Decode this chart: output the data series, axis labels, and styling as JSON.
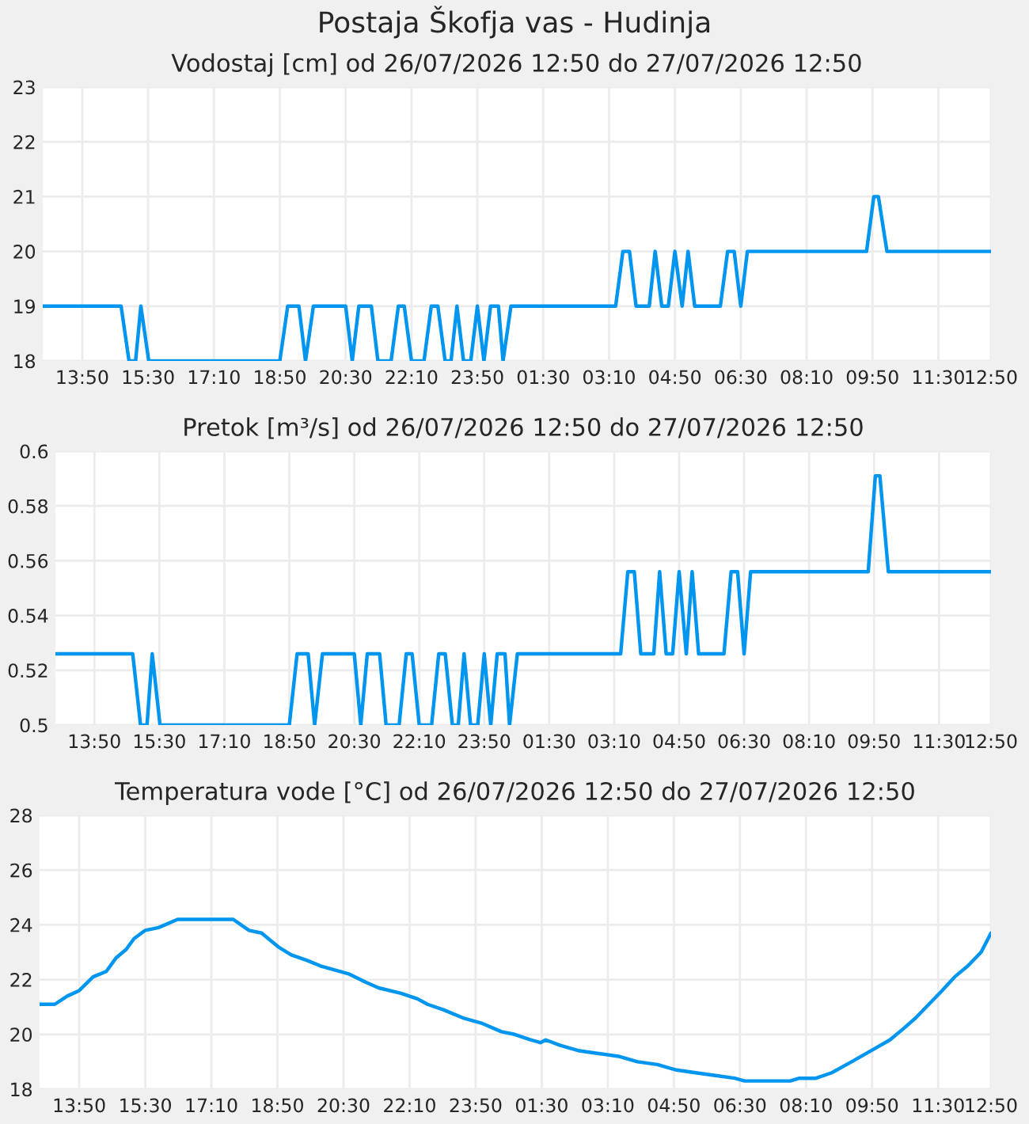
{
  "chart_data": [
    {
      "type": "line",
      "title": "Postaja Škofja vas - Hudinja",
      "subtitle": "Vodostaj [cm] od 26/07/2026 12:50 do 27/07/2026 12:50",
      "x": [
        "2026-07-26T12:50",
        "2026-07-26T14:49",
        "2026-07-26T15:01",
        "2026-07-26T15:11",
        "2026-07-26T15:19",
        "2026-07-26T15:31",
        "2026-07-26T18:50",
        "2026-07-26T19:02",
        "2026-07-26T19:19",
        "2026-07-26T19:29",
        "2026-07-26T19:41",
        "2026-07-26T20:30",
        "2026-07-26T20:40",
        "2026-07-26T20:50",
        "2026-07-26T21:09",
        "2026-07-26T21:19",
        "2026-07-26T21:39",
        "2026-07-26T21:50",
        "2026-07-26T21:59",
        "2026-07-26T22:10",
        "2026-07-26T22:29",
        "2026-07-26T22:40",
        "2026-07-26T22:50",
        "2026-07-26T23:01",
        "2026-07-26T23:10",
        "2026-07-26T23:19",
        "2026-07-26T23:29",
        "2026-07-26T23:40",
        "2026-07-26T23:50",
        "2026-07-27T00:00",
        "2026-07-27T00:10",
        "2026-07-27T00:22",
        "2026-07-27T00:29",
        "2026-07-27T00:41",
        "2026-07-27T03:20",
        "2026-07-27T03:31",
        "2026-07-27T03:41",
        "2026-07-27T03:51",
        "2026-07-27T04:11",
        "2026-07-27T04:20",
        "2026-07-27T04:30",
        "2026-07-27T04:40",
        "2026-07-27T04:50",
        "2026-07-27T05:01",
        "2026-07-27T05:10",
        "2026-07-27T05:20",
        "2026-07-27T05:59",
        "2026-07-27T06:10",
        "2026-07-27T06:20",
        "2026-07-27T06:30",
        "2026-07-27T06:40",
        "2026-07-27T09:41",
        "2026-07-27T09:52",
        "2026-07-27T09:59",
        "2026-07-27T10:12",
        "2026-07-27T12:50"
      ],
      "series": [
        {
          "color": "#0096f0",
          "values": [
            19,
            19,
            18,
            18,
            19,
            18,
            18,
            19,
            19,
            18,
            19,
            19,
            18,
            19,
            19,
            18,
            18,
            19,
            19,
            18,
            18,
            19,
            19,
            18,
            18,
            19,
            18,
            18,
            19,
            18,
            19,
            19,
            18,
            19,
            19,
            20,
            20,
            19,
            19,
            20,
            19,
            19,
            20,
            19,
            20,
            19,
            19,
            20,
            20,
            19,
            20,
            20,
            21,
            21,
            20,
            20
          ]
        }
      ],
      "xlim": [
        "2026-07-26T12:50",
        "2026-07-27T12:50"
      ],
      "xticks": [
        {
          "value": "2026-07-26T13:50",
          "label": "13:50"
        },
        {
          "value": "2026-07-26T15:30",
          "label": "15:30"
        },
        {
          "value": "2026-07-26T17:10",
          "label": "17:10"
        },
        {
          "value": "2026-07-26T18:50",
          "label": "18:50"
        },
        {
          "value": "2026-07-26T20:30",
          "label": "20:30"
        },
        {
          "value": "2026-07-26T22:10",
          "label": "22:10"
        },
        {
          "value": "2026-07-26T23:50",
          "label": "23:50"
        },
        {
          "value": "2026-07-27T01:30",
          "label": "01:30"
        },
        {
          "value": "2026-07-27T03:10",
          "label": "03:10"
        },
        {
          "value": "2026-07-27T04:50",
          "label": "04:50"
        },
        {
          "value": "2026-07-27T06:30",
          "label": "06:30"
        },
        {
          "value": "2026-07-27T08:10",
          "label": "08:10"
        },
        {
          "value": "2026-07-27T09:50",
          "label": "09:50"
        },
        {
          "value": "2026-07-27T11:30",
          "label": "11:30"
        },
        {
          "value": "2026-07-27T12:50",
          "label": "12:50"
        }
      ],
      "ylim": [
        18,
        23
      ],
      "yticks": [
        18,
        19,
        20,
        21,
        22,
        23
      ],
      "grid": true
    },
    {
      "type": "line",
      "title": "Pretok [m³/s] od 26/07/2026 12:50 do 27/07/2026 12:50",
      "x": [
        "2026-07-26T12:50",
        "2026-07-26T14:49",
        "2026-07-26T15:01",
        "2026-07-26T15:11",
        "2026-07-26T15:19",
        "2026-07-26T15:31",
        "2026-07-26T18:50",
        "2026-07-26T19:02",
        "2026-07-26T19:19",
        "2026-07-26T19:29",
        "2026-07-26T19:41",
        "2026-07-26T20:30",
        "2026-07-26T20:40",
        "2026-07-26T20:50",
        "2026-07-26T21:09",
        "2026-07-26T21:19",
        "2026-07-26T21:39",
        "2026-07-26T21:50",
        "2026-07-26T21:59",
        "2026-07-26T22:10",
        "2026-07-26T22:29",
        "2026-07-26T22:40",
        "2026-07-26T22:50",
        "2026-07-26T23:01",
        "2026-07-26T23:10",
        "2026-07-26T23:19",
        "2026-07-26T23:29",
        "2026-07-26T23:40",
        "2026-07-26T23:50",
        "2026-07-27T00:00",
        "2026-07-27T00:10",
        "2026-07-27T00:22",
        "2026-07-27T00:29",
        "2026-07-27T00:41",
        "2026-07-27T03:20",
        "2026-07-27T03:31",
        "2026-07-27T03:41",
        "2026-07-27T03:51",
        "2026-07-27T04:11",
        "2026-07-27T04:20",
        "2026-07-27T04:30",
        "2026-07-27T04:40",
        "2026-07-27T04:50",
        "2026-07-27T05:01",
        "2026-07-27T05:10",
        "2026-07-27T05:20",
        "2026-07-27T05:59",
        "2026-07-27T06:10",
        "2026-07-27T06:20",
        "2026-07-27T06:30",
        "2026-07-27T06:40",
        "2026-07-27T09:41",
        "2026-07-27T09:52",
        "2026-07-27T09:59",
        "2026-07-27T10:12",
        "2026-07-27T12:50"
      ],
      "series": [
        {
          "color": "#0096f0",
          "values": [
            0.526,
            0.526,
            0.5,
            0.5,
            0.526,
            0.5,
            0.5,
            0.526,
            0.526,
            0.5,
            0.526,
            0.526,
            0.5,
            0.526,
            0.526,
            0.5,
            0.5,
            0.526,
            0.526,
            0.5,
            0.5,
            0.526,
            0.526,
            0.5,
            0.5,
            0.526,
            0.5,
            0.5,
            0.526,
            0.5,
            0.526,
            0.526,
            0.5,
            0.526,
            0.526,
            0.556,
            0.556,
            0.526,
            0.526,
            0.556,
            0.526,
            0.526,
            0.556,
            0.526,
            0.556,
            0.526,
            0.526,
            0.556,
            0.556,
            0.526,
            0.556,
            0.556,
            0.591,
            0.591,
            0.556,
            0.556
          ]
        }
      ],
      "xlim": [
        "2026-07-26T12:50",
        "2026-07-27T12:50"
      ],
      "xticks": [
        {
          "value": "2026-07-26T13:50",
          "label": "13:50"
        },
        {
          "value": "2026-07-26T15:30",
          "label": "15:30"
        },
        {
          "value": "2026-07-26T17:10",
          "label": "17:10"
        },
        {
          "value": "2026-07-26T18:50",
          "label": "18:50"
        },
        {
          "value": "2026-07-26T20:30",
          "label": "20:30"
        },
        {
          "value": "2026-07-26T22:10",
          "label": "22:10"
        },
        {
          "value": "2026-07-26T23:50",
          "label": "23:50"
        },
        {
          "value": "2026-07-27T01:30",
          "label": "01:30"
        },
        {
          "value": "2026-07-27T03:10",
          "label": "03:10"
        },
        {
          "value": "2026-07-27T04:50",
          "label": "04:50"
        },
        {
          "value": "2026-07-27T06:30",
          "label": "06:30"
        },
        {
          "value": "2026-07-27T08:10",
          "label": "08:10"
        },
        {
          "value": "2026-07-27T09:50",
          "label": "09:50"
        },
        {
          "value": "2026-07-27T11:30",
          "label": "11:30"
        },
        {
          "value": "2026-07-27T12:50",
          "label": "12:50"
        }
      ],
      "ylim": [
        0.5,
        0.6
      ],
      "yticks": [
        0.5,
        0.52,
        0.54,
        0.56,
        0.58,
        0.6
      ],
      "grid": true
    },
    {
      "type": "line",
      "title": "Temperatura vode [°C] od 26/07/2026 12:50 do 27/07/2026 12:50",
      "x": [
        "2026-07-26T12:50",
        "2026-07-26T13:13",
        "2026-07-26T13:32",
        "2026-07-26T13:50",
        "2026-07-26T14:11",
        "2026-07-26T14:31",
        "2026-07-26T14:46",
        "2026-07-26T15:01",
        "2026-07-26T15:13",
        "2026-07-26T15:30",
        "2026-07-26T15:50",
        "2026-07-26T16:19",
        "2026-07-26T17:43",
        "2026-07-26T18:07",
        "2026-07-26T18:26",
        "2026-07-26T18:51",
        "2026-07-26T19:11",
        "2026-07-26T19:35",
        "2026-07-26T19:55",
        "2026-07-26T20:24",
        "2026-07-26T20:39",
        "2026-07-26T21:04",
        "2026-07-26T21:23",
        "2026-07-26T21:57",
        "2026-07-26T22:22",
        "2026-07-26T22:37",
        "2026-07-26T23:01",
        "2026-07-26T23:31",
        "2026-07-27T00:00",
        "2026-07-27T00:29",
        "2026-07-27T00:49",
        "2026-07-27T01:13",
        "2026-07-27T01:28",
        "2026-07-27T01:36",
        "2026-07-27T01:58",
        "2026-07-27T02:27",
        "2026-07-27T02:56",
        "2026-07-27T03:26",
        "2026-07-27T03:55",
        "2026-07-27T04:25",
        "2026-07-27T04:54",
        "2026-07-27T05:23",
        "2026-07-27T05:53",
        "2026-07-27T06:22",
        "2026-07-27T06:37",
        "2026-07-27T07:46",
        "2026-07-27T08:00",
        "2026-07-27T08:25",
        "2026-07-27T08:49",
        "2026-07-27T09:19",
        "2026-07-27T09:48",
        "2026-07-27T10:17",
        "2026-07-27T10:37",
        "2026-07-27T10:56",
        "2026-07-27T11:16",
        "2026-07-27T11:36",
        "2026-07-27T11:55",
        "2026-07-27T12:15",
        "2026-07-27T12:35",
        "2026-07-27T12:50"
      ],
      "series": [
        {
          "color": "#0096f0",
          "values": [
            21.1,
            21.1,
            21.4,
            21.6,
            22.1,
            22.3,
            22.8,
            23.1,
            23.5,
            23.8,
            23.9,
            24.2,
            24.2,
            23.8,
            23.7,
            23.2,
            22.9,
            22.7,
            22.5,
            22.3,
            22.2,
            21.9,
            21.7,
            21.5,
            21.3,
            21.1,
            20.9,
            20.6,
            20.4,
            20.1,
            20.0,
            19.8,
            19.7,
            19.8,
            19.6,
            19.4,
            19.3,
            19.2,
            19.0,
            18.9,
            18.7,
            18.6,
            18.5,
            18.4,
            18.3,
            18.3,
            18.4,
            18.4,
            18.6,
            19.0,
            19.4,
            19.8,
            20.2,
            20.6,
            21.1,
            21.6,
            22.1,
            22.5,
            23.0,
            23.7
          ]
        }
      ],
      "xlim": [
        "2026-07-26T12:50",
        "2026-07-27T12:50"
      ],
      "xticks": [
        {
          "value": "2026-07-26T13:50",
          "label": "13:50"
        },
        {
          "value": "2026-07-26T15:30",
          "label": "15:30"
        },
        {
          "value": "2026-07-26T17:10",
          "label": "17:10"
        },
        {
          "value": "2026-07-26T18:50",
          "label": "18:50"
        },
        {
          "value": "2026-07-26T20:30",
          "label": "20:30"
        },
        {
          "value": "2026-07-26T22:10",
          "label": "22:10"
        },
        {
          "value": "2026-07-26T23:50",
          "label": "23:50"
        },
        {
          "value": "2026-07-27T01:30",
          "label": "01:30"
        },
        {
          "value": "2026-07-27T03:10",
          "label": "03:10"
        },
        {
          "value": "2026-07-27T04:50",
          "label": "04:50"
        },
        {
          "value": "2026-07-27T06:30",
          "label": "06:30"
        },
        {
          "value": "2026-07-27T08:10",
          "label": "08:10"
        },
        {
          "value": "2026-07-27T09:50",
          "label": "09:50"
        },
        {
          "value": "2026-07-27T11:30",
          "label": "11:30"
        },
        {
          "value": "2026-07-27T12:50",
          "label": "12:50"
        }
      ],
      "ylim": [
        18,
        28
      ],
      "yticks": [
        18,
        20,
        22,
        24,
        26,
        28
      ],
      "grid": true
    }
  ]
}
